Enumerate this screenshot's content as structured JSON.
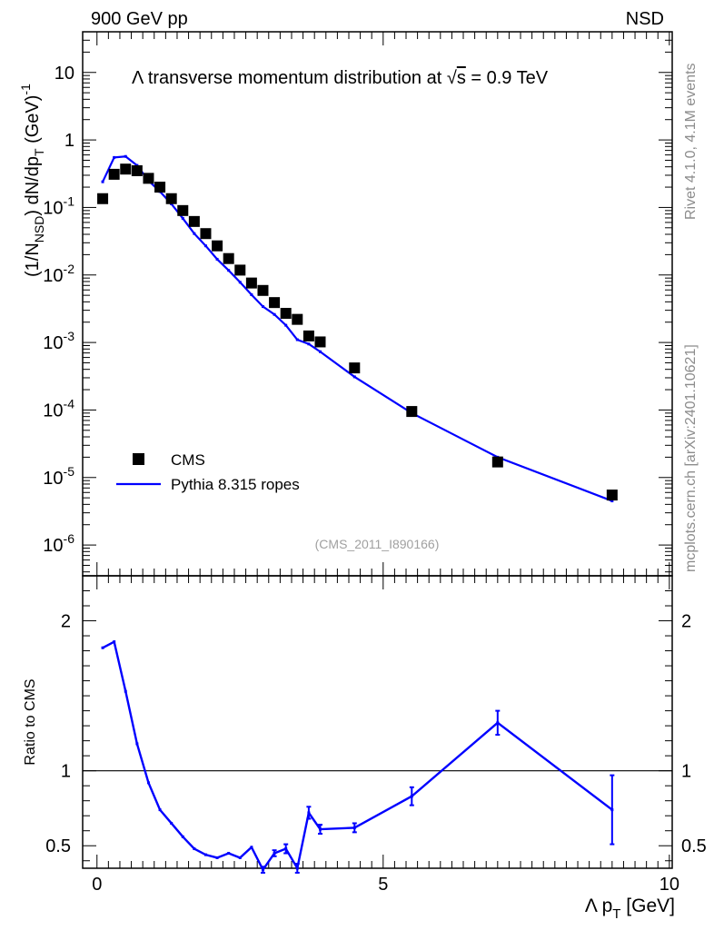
{
  "header": {
    "left": "900 GeV pp",
    "right": "NSD"
  },
  "side": {
    "rivet": "Rivet 4.1.0,  4.1M events",
    "mcplots": "mcplots.cern.ch [arXiv:2401.10621]"
  },
  "chart_data": [
    {
      "type": "scatter",
      "title_prefix": "Λ transverse momentum distribution at ",
      "title_sqrt": "s",
      "title_suffix": " = 0.9 TeV",
      "ylabel": "(1/N_NSD) dN/dp_T (GeV)^-1",
      "ylabel_parts": {
        "main": "(1/N",
        "sub": "NSD",
        "mid": ") dN/dp",
        "sub2": "T",
        "end": " (GeV)",
        "sup": "-1"
      },
      "yscale": "log",
      "ylim": [
        3.5e-07,
        40
      ],
      "xlim": [
        -0.25,
        10.05
      ],
      "ytick_labels": [
        "10",
        "1",
        "10^-1",
        "10^-2",
        "10^-3",
        "10^-4",
        "10^-5",
        "10^-6"
      ],
      "watermark": "(CMS_2011_I890166)",
      "legend": {
        "placement": "lower-left",
        "entries": [
          "CMS",
          "Pythia 8.315 ropes"
        ]
      },
      "series": [
        {
          "name": "CMS",
          "x": [
            0.1,
            0.3,
            0.5,
            0.7,
            0.9,
            1.1,
            1.3,
            1.5,
            1.7,
            1.9,
            2.1,
            2.3,
            2.5,
            2.7,
            2.9,
            3.1,
            3.3,
            3.5,
            3.7,
            3.9,
            4.5,
            5.5,
            7.0,
            9.0
          ],
          "y": [
            0.135,
            0.31,
            0.37,
            0.35,
            0.27,
            0.2,
            0.135,
            0.09,
            0.062,
            0.041,
            0.027,
            0.0175,
            0.0118,
            0.0076,
            0.0059,
            0.0039,
            0.0027,
            0.0022,
            0.00125,
            0.00102,
            0.00042,
            9.5e-05,
            1.7e-05,
            5.5e-06
          ]
        },
        {
          "name": "Pythia 8.315 ropes",
          "x": [
            0.1,
            0.3,
            0.5,
            0.7,
            0.9,
            1.1,
            1.3,
            1.5,
            1.7,
            1.9,
            2.1,
            2.3,
            2.5,
            2.7,
            2.9,
            3.1,
            3.3,
            3.5,
            3.7,
            3.9,
            4.5,
            5.5,
            7.0,
            9.0
          ],
          "y": [
            0.24,
            0.55,
            0.57,
            0.42,
            0.25,
            0.172,
            0.113,
            0.069,
            0.041,
            0.027,
            0.0171,
            0.0117,
            0.0078,
            0.0051,
            0.0034,
            0.0026,
            0.0018,
            0.0011,
            0.00095,
            0.00073,
            0.00031,
            9e-05,
            2e-05,
            4.5e-06
          ]
        }
      ]
    },
    {
      "type": "line",
      "ylabel": "Ratio to CMS",
      "xlabel": "Λ p_T [GeV]",
      "xlabel_parts": {
        "main": "Λ p",
        "sub": "T",
        "end": " [GeV]"
      },
      "ylim": [
        0.35,
        2.3
      ],
      "xlim": [
        -0.25,
        10.05
      ],
      "ytick_labels": [
        "2",
        "1",
        "0.5"
      ],
      "xtick_labels": [
        "0",
        "5",
        "10"
      ],
      "reference_line": 1,
      "series": [
        {
          "name": "Pythia 8.315 ropes / CMS",
          "x": [
            0.1,
            0.3,
            0.5,
            0.7,
            0.9,
            1.1,
            1.3,
            1.5,
            1.7,
            1.9,
            2.1,
            2.3,
            2.5,
            2.7,
            2.9,
            3.1,
            3.3,
            3.5,
            3.7,
            3.9,
            4.5,
            5.5,
            7.0,
            9.0
          ],
          "y": [
            1.82,
            1.86,
            1.53,
            1.18,
            0.92,
            0.74,
            0.65,
            0.56,
            0.48,
            0.44,
            0.42,
            0.45,
            0.42,
            0.49,
            0.34,
            0.45,
            0.48,
            0.35,
            0.72,
            0.61,
            0.62,
            0.83,
            1.32,
            0.74
          ],
          "err": [
            0,
            0,
            0,
            0,
            0,
            0,
            0,
            0,
            0,
            0,
            0,
            0,
            0,
            0,
            0.02,
            0.02,
            0.03,
            0.03,
            0.04,
            0.03,
            0.03,
            0.06,
            0.08,
            0.23
          ]
        }
      ]
    }
  ]
}
